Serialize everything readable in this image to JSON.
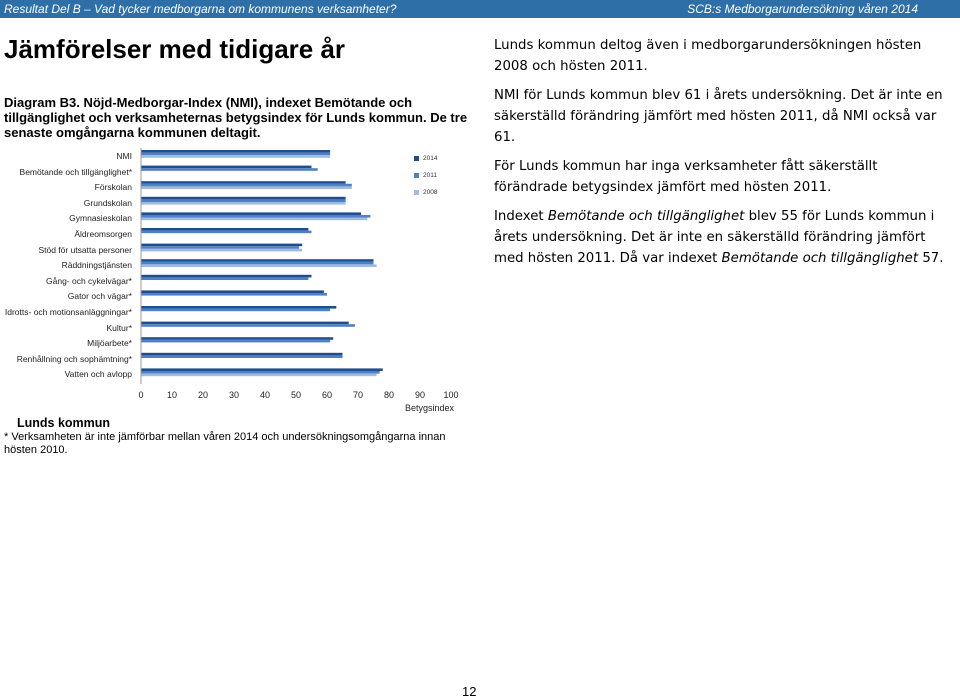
{
  "header": {
    "left": "Resultat Del B – Vad tycker medborgarna om kommunens verksamheter?",
    "right": "SCB:s Medborgarundersökning våren 2014"
  },
  "heading": "Jämförelser med tidigare år",
  "caption": "Diagram B3. Nöjd-Medborgar-Index (NMI), indexet Bemötande och tillgänglighet och verksamheternas betygsindex för Lunds kommun. De tre senaste omgångarna kommunen deltagit.",
  "chart_data": {
    "type": "bar",
    "orientation": "horizontal",
    "categories": [
      "NMI",
      "Bemötande och tillgänglighet*",
      "Förskolan",
      "Grundskolan",
      "Gymnasieskolan",
      "Äldreomsorgen",
      "Stöd för utsatta personer",
      "Räddningstjänsten",
      "Gång- och cykelvägar*",
      "Gator och vägar*",
      "Idrotts- och motionsanläggningar*",
      "Kultur*",
      "Miljöarbete*",
      "Renhållning och sophämtning*",
      "Vatten och avlopp"
    ],
    "series": [
      {
        "name": "2014",
        "color": "#1f4e8c",
        "values": [
          61,
          55,
          66,
          66,
          71,
          54,
          52,
          75,
          55,
          59,
          63,
          67,
          62,
          65,
          78
        ]
      },
      {
        "name": "2011",
        "color": "#4f7fc4",
        "values": [
          61,
          57,
          68,
          66,
          74,
          55,
          51,
          75,
          54,
          60,
          61,
          69,
          61,
          65,
          77
        ]
      },
      {
        "name": "2008",
        "color": "#9fbbe0",
        "values": [
          61,
          0,
          68,
          66,
          73,
          0,
          52,
          76,
          0,
          0,
          0,
          0,
          0,
          0,
          76
        ]
      }
    ],
    "xlim": [
      0,
      100
    ],
    "xticks": [
      0,
      10,
      20,
      30,
      40,
      50,
      60,
      70,
      80,
      90,
      100
    ],
    "xlabel": "Betygsindex",
    "legend_position": "top-right",
    "grid": false
  },
  "source": "Lunds kommun",
  "footnote": "* Verksamheten är inte jämförbar mellan våren 2014 och undersökningsomgångarna innan hösten 2010.",
  "paragraphs": [
    "Lunds kommun deltog även i medborgarundersökningen hösten 2008 och hösten 2011.",
    "NMI för Lunds kommun blev 61 i årets undersökning. Det är inte en säkerställd förändring jämfört med hösten 2011, då NMI också var 61.",
    "För Lunds kommun har inga verksamheter fått säkerställt förändrade betygsindex jämfört med hösten 2011."
  ],
  "paragraph_4": {
    "pre": "Indexet ",
    "em1": "Bemötande och tillgänglighet",
    "mid": " blev 55 för Lunds kommun i årets undersökning. Det är inte en säkerställd förändring jämfört med hösten 2011. Då var indexet ",
    "em2": "Bemötande och tillgänglighet",
    "post": " 57."
  },
  "page_number": "12"
}
